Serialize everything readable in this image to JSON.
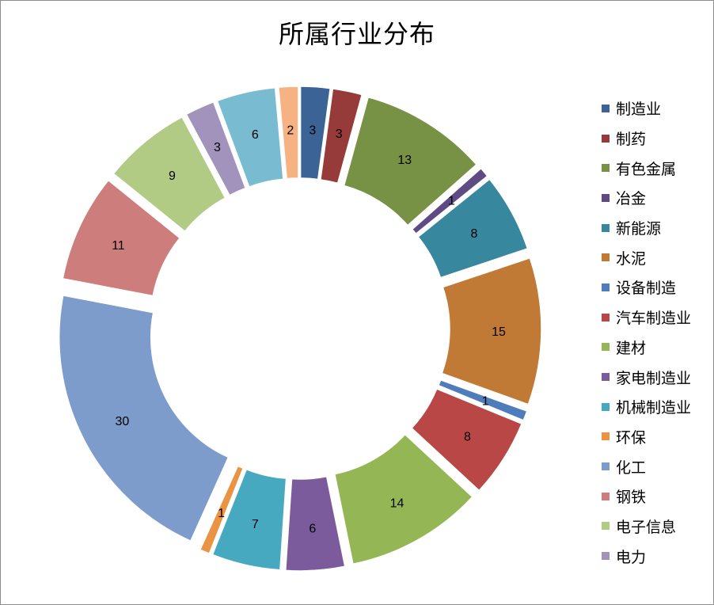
{
  "chart_data": {
    "type": "pie",
    "title": "所属行业分布",
    "legend_position": "right",
    "slices": [
      {
        "label": "制造业",
        "value": 3,
        "color": "#3C6396"
      },
      {
        "label": "制药",
        "value": 3,
        "color": "#963B39"
      },
      {
        "label": "有色金属",
        "value": 13,
        "color": "#779244"
      },
      {
        "label": "冶金",
        "value": 1,
        "color": "#5F4B84"
      },
      {
        "label": "新能源",
        "value": 8,
        "color": "#37879E"
      },
      {
        "label": "水泥",
        "value": 15,
        "color": "#C17A36"
      },
      {
        "label": "设备制造",
        "value": 1,
        "color": "#4F7CBA"
      },
      {
        "label": "汽车制造业",
        "value": 8,
        "color": "#B94745"
      },
      {
        "label": "建材",
        "value": 14,
        "color": "#94B654"
      },
      {
        "label": "家电制造业",
        "value": 6,
        "color": "#7B5B9C"
      },
      {
        "label": "机械制造业",
        "value": 7,
        "color": "#47A9C0"
      },
      {
        "label": "环保",
        "value": 1,
        "color": "#EA9443"
      },
      {
        "label": "化工",
        "value": 30,
        "color": "#7D9BCB"
      },
      {
        "label": "钢铁",
        "value": 11,
        "color": "#CD7D7C"
      },
      {
        "label": "电子信息",
        "value": 9,
        "color": "#B1CB84"
      },
      {
        "label": "电力",
        "value": 3,
        "color": "#A193BB"
      },
      {
        "label": "",
        "value": 6,
        "color": "#79BCD2"
      },
      {
        "label": "",
        "value": 2,
        "color": "#F6B283"
      }
    ]
  }
}
